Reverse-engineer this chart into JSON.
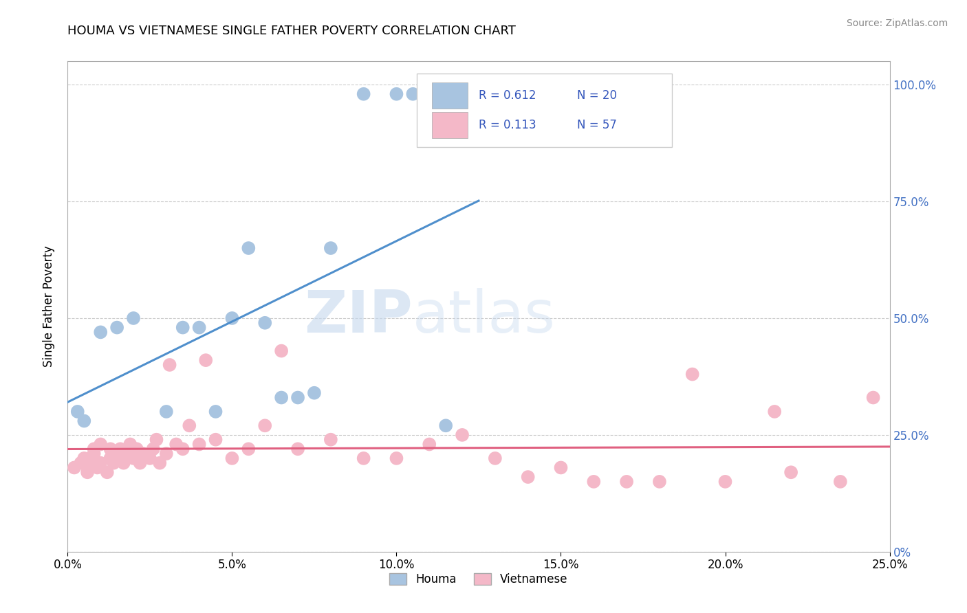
{
  "title": "HOUMA VS VIETNAMESE SINGLE FATHER POVERTY CORRELATION CHART",
  "source_text": "Source: ZipAtlas.com",
  "ylabel": "Single Father Poverty",
  "xlim": [
    0.0,
    0.25
  ],
  "ylim": [
    0.0,
    1.05
  ],
  "xtick_labels": [
    "0.0%",
    "5.0%",
    "10.0%",
    "15.0%",
    "20.0%",
    "25.0%"
  ],
  "xtick_values": [
    0.0,
    0.05,
    0.1,
    0.15,
    0.2,
    0.25
  ],
  "ytick_labels_right": [
    "0%",
    "25.0%",
    "50.0%",
    "75.0%",
    "100.0%"
  ],
  "ytick_values_right": [
    0.0,
    0.25,
    0.5,
    0.75,
    1.0
  ],
  "houma_R": 0.612,
  "houma_N": 20,
  "vietnamese_R": 0.113,
  "vietnamese_N": 57,
  "houma_color": "#a8c4e0",
  "houma_line_color": "#4f8fcc",
  "vietnamese_color": "#f4b8c8",
  "vietnamese_line_color": "#e06080",
  "legend_text_color": "#3355bb",
  "watermark_zip": "ZIP",
  "watermark_atlas": "atlas",
  "houma_x": [
    0.003,
    0.005,
    0.01,
    0.015,
    0.02,
    0.03,
    0.035,
    0.04,
    0.045,
    0.05,
    0.055,
    0.06,
    0.065,
    0.07,
    0.075,
    0.08,
    0.09,
    0.1,
    0.105,
    0.115
  ],
  "houma_y": [
    0.3,
    0.28,
    0.47,
    0.48,
    0.5,
    0.3,
    0.48,
    0.48,
    0.3,
    0.5,
    0.65,
    0.49,
    0.33,
    0.33,
    0.34,
    0.65,
    0.98,
    0.98,
    0.98,
    0.27
  ],
  "vietnamese_x": [
    0.002,
    0.004,
    0.005,
    0.006,
    0.007,
    0.008,
    0.008,
    0.009,
    0.01,
    0.01,
    0.012,
    0.013,
    0.013,
    0.014,
    0.015,
    0.016,
    0.017,
    0.018,
    0.019,
    0.02,
    0.021,
    0.022,
    0.023,
    0.025,
    0.026,
    0.027,
    0.028,
    0.03,
    0.031,
    0.033,
    0.035,
    0.037,
    0.04,
    0.042,
    0.045,
    0.05,
    0.055,
    0.06,
    0.065,
    0.07,
    0.08,
    0.09,
    0.1,
    0.11,
    0.12,
    0.13,
    0.14,
    0.15,
    0.16,
    0.17,
    0.18,
    0.19,
    0.2,
    0.215,
    0.22,
    0.235,
    0.245
  ],
  "vietnamese_y": [
    0.18,
    0.19,
    0.2,
    0.17,
    0.19,
    0.21,
    0.22,
    0.18,
    0.19,
    0.23,
    0.17,
    0.2,
    0.22,
    0.19,
    0.2,
    0.22,
    0.19,
    0.21,
    0.23,
    0.2,
    0.22,
    0.19,
    0.21,
    0.2,
    0.22,
    0.24,
    0.19,
    0.21,
    0.4,
    0.23,
    0.22,
    0.27,
    0.23,
    0.41,
    0.24,
    0.2,
    0.22,
    0.27,
    0.43,
    0.22,
    0.24,
    0.2,
    0.2,
    0.23,
    0.25,
    0.2,
    0.16,
    0.18,
    0.15,
    0.15,
    0.15,
    0.38,
    0.15,
    0.3,
    0.17,
    0.15,
    0.33
  ]
}
